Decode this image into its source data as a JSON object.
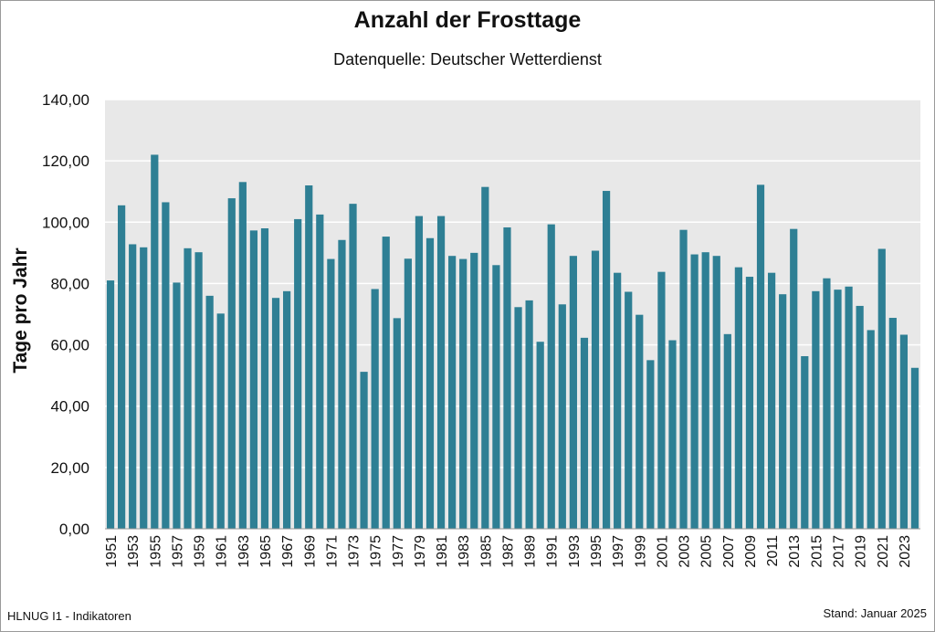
{
  "title": "Anzahl der Frosttage",
  "subtitle": "Datenquelle: Deutscher Wetterdienst",
  "footer_left": "HLNUG I1 - Indikatoren",
  "footer_right": "Stand: Januar 2025",
  "colors": {
    "bar": "#2e7f94",
    "plot_bg": "#e8e8e8",
    "grid": "#ffffff"
  },
  "chart_data": {
    "type": "bar",
    "title": "Anzahl der Frosttage",
    "subtitle": "Datenquelle: Deutscher Wetterdienst",
    "ylabel": "Tage pro Jahr",
    "xlabel": "",
    "ylim": [
      0,
      140
    ],
    "yticks": [
      "0,00",
      "20,00",
      "40,00",
      "60,00",
      "80,00",
      "100,00",
      "120,00",
      "140,00"
    ],
    "grid": true,
    "legend": "none",
    "categories": [
      1951,
      1952,
      1953,
      1954,
      1955,
      1956,
      1957,
      1958,
      1959,
      1960,
      1961,
      1962,
      1963,
      1964,
      1965,
      1966,
      1967,
      1968,
      1969,
      1970,
      1971,
      1972,
      1973,
      1974,
      1975,
      1976,
      1977,
      1978,
      1979,
      1980,
      1981,
      1982,
      1983,
      1984,
      1985,
      1986,
      1987,
      1988,
      1989,
      1990,
      1991,
      1992,
      1993,
      1994,
      1995,
      1996,
      1997,
      1998,
      1999,
      2000,
      2001,
      2002,
      2003,
      2004,
      2005,
      2006,
      2007,
      2008,
      2009,
      2010,
      2011,
      2012,
      2013,
      2014,
      2015,
      2016,
      2017,
      2018,
      2019,
      2020,
      2021,
      2022,
      2023,
      2024
    ],
    "tick_labels": [
      "1951",
      "1953",
      "1955",
      "1957",
      "1959",
      "1961",
      "1963",
      "1965",
      "1967",
      "1969",
      "1971",
      "1973",
      "1975",
      "1977",
      "1979",
      "1981",
      "1983",
      "1985",
      "1987",
      "1989",
      "1991",
      "1993",
      "1995",
      "1997",
      "1999",
      "2001",
      "2003",
      "2005",
      "2007",
      "2009",
      "2011",
      "2013",
      "2015",
      "2017",
      "2019",
      "2021",
      "2023"
    ],
    "values": [
      81,
      105.5,
      92.8,
      91.8,
      122,
      106.5,
      80.3,
      91.5,
      90.2,
      76,
      70.2,
      107.8,
      113.1,
      97.3,
      98,
      75.3,
      77.5,
      101,
      112,
      102.5,
      88,
      94.2,
      106,
      51.2,
      78.2,
      95.3,
      68.7,
      88.1,
      102,
      94.8,
      102,
      89,
      88,
      90,
      111.5,
      86,
      98.3,
      72.3,
      74.5,
      61,
      99.3,
      73.2,
      89,
      62.3,
      90.7,
      110.2,
      83.5,
      77.3,
      69.8,
      55,
      83.8,
      61.5,
      97.5,
      89.5,
      90.2,
      89,
      63.5,
      85.3,
      82.2,
      112.2,
      83.5,
      76.5,
      97.8,
      56.3,
      77.5,
      81.7,
      78,
      79,
      72.7,
      64.8,
      91.3,
      68.8,
      63.3,
      52.5
    ]
  }
}
